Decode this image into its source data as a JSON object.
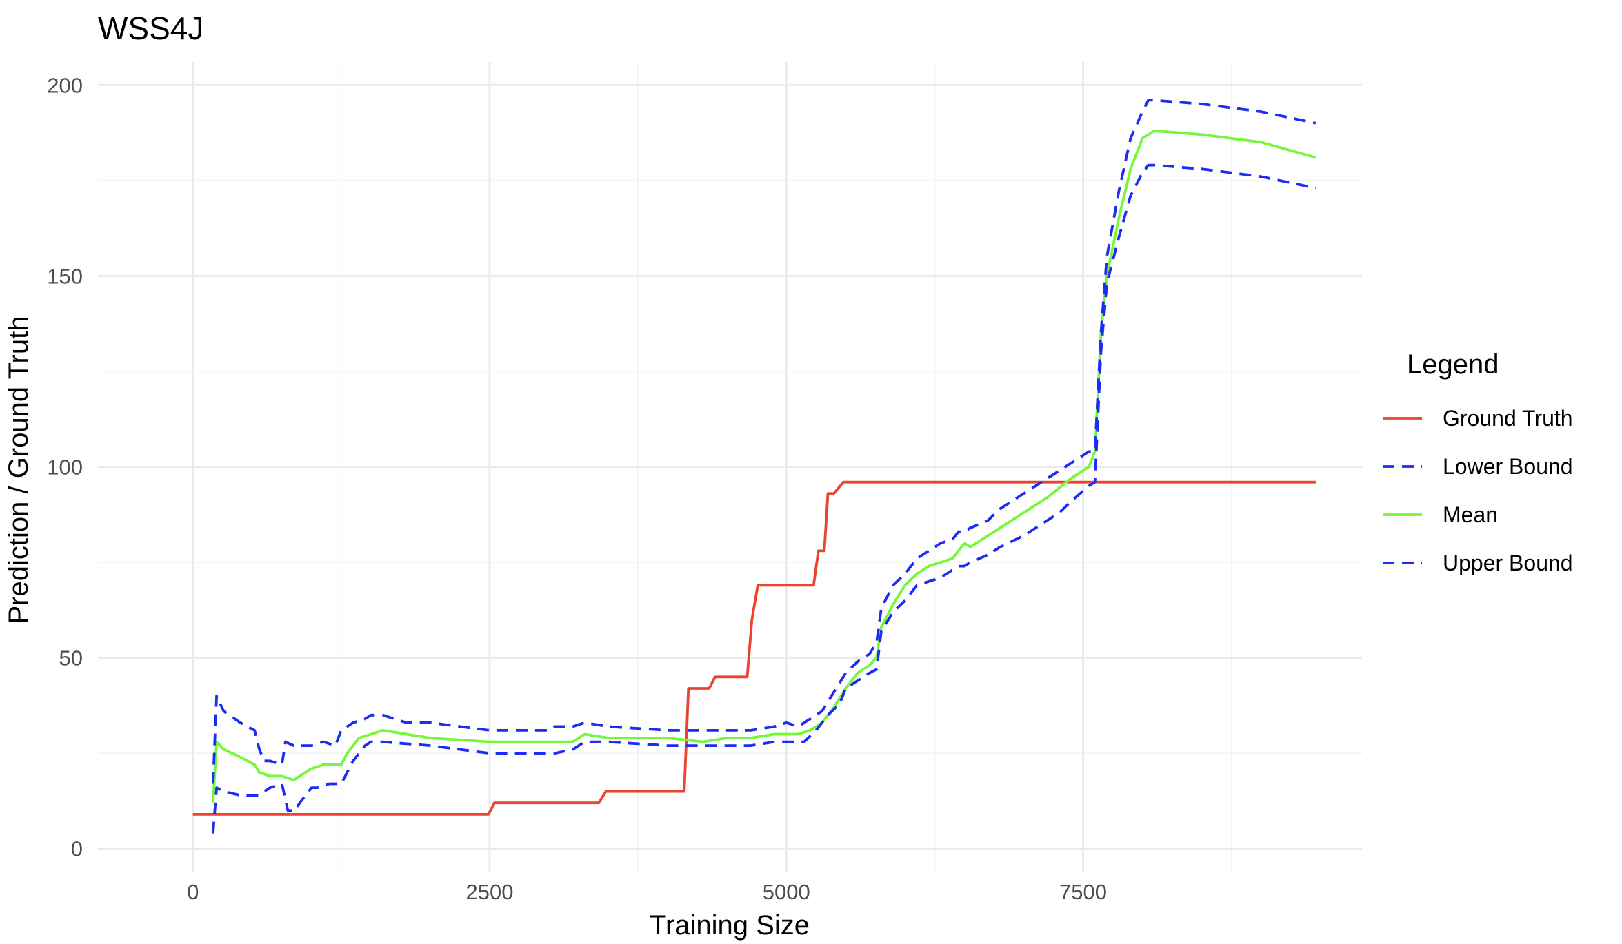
{
  "chart_data": {
    "type": "line",
    "title": "WSS4J",
    "xlabel": "Training Size",
    "ylabel": "Prediction / Ground Truth",
    "xlim": [
      -800,
      9850
    ],
    "ylim": [
      -6,
      206
    ],
    "xticks": [
      0,
      2500,
      5000,
      7500
    ],
    "yticks": [
      0,
      50,
      100,
      150,
      200
    ],
    "grid": true,
    "legend": {
      "title": "Legend",
      "position": "right"
    },
    "series": [
      {
        "name": "Ground Truth",
        "color": "#e8442e",
        "dash": "solid",
        "x": [
          0,
          2490,
          2540,
          3420,
          3480,
          4140,
          4175,
          4350,
          4400,
          4670,
          4710,
          4760,
          5230,
          5270,
          5320,
          5350,
          5400,
          5480,
          9460
        ],
        "y": [
          9,
          9,
          12,
          12,
          15,
          15,
          42,
          42,
          45,
          45,
          60,
          69,
          69,
          78,
          78,
          93,
          93,
          96,
          96
        ]
      },
      {
        "name": "Lower Bound",
        "color": "#1c2cf3",
        "dash": "dashed",
        "x": [
          170,
          200,
          260,
          400,
          550,
          650,
          750,
          800,
          860,
          900,
          1000,
          1050,
          1150,
          1250,
          1350,
          1450,
          1500,
          1600,
          2000,
          2500,
          3000,
          3050,
          3200,
          3300,
          3500,
          4000,
          4300,
          4500,
          4700,
          4900,
          5000,
          5100,
          5150,
          5250,
          5350,
          5450,
          5500,
          5600,
          5700,
          5760,
          5800,
          5900,
          6000,
          6100,
          6200,
          6300,
          6400,
          6450,
          6500,
          6550,
          6700,
          6800,
          7000,
          7200,
          7300,
          7400,
          7550,
          7600,
          7650,
          7700,
          7800,
          7900,
          8000,
          8050,
          8100,
          8500,
          9000,
          9460
        ],
        "y": [
          4,
          16,
          15,
          14,
          14,
          16,
          17,
          10,
          10,
          12,
          16,
          16,
          17,
          17,
          23,
          27,
          28,
          28,
          27,
          25,
          25,
          25,
          26,
          28,
          28,
          27,
          27,
          27,
          27,
          28,
          28,
          28,
          28,
          31,
          35,
          38,
          42,
          44,
          46,
          47,
          57,
          62,
          65,
          69,
          70,
          71,
          73,
          74,
          74,
          75,
          77,
          79,
          82,
          86,
          88,
          91,
          95,
          96,
          130,
          148,
          160,
          171,
          177,
          179,
          179,
          178,
          176,
          173
        ]
      },
      {
        "name": "Mean",
        "color": "#75f73a",
        "dash": "solid",
        "x": [
          170,
          200,
          260,
          400,
          520,
          560,
          650,
          750,
          850,
          900,
          1000,
          1100,
          1250,
          1300,
          1400,
          1500,
          1600,
          1800,
          2000,
          2500,
          2900,
          3000,
          3050,
          3200,
          3300,
          3500,
          4000,
          4300,
          4500,
          4700,
          4900,
          5000,
          5100,
          5200,
          5300,
          5400,
          5500,
          5600,
          5700,
          5760,
          5800,
          5900,
          6000,
          6100,
          6200,
          6300,
          6400,
          6450,
          6500,
          6550,
          6600,
          6700,
          6800,
          7000,
          7200,
          7400,
          7550,
          7600,
          7650,
          7700,
          7800,
          7900,
          8000,
          8050,
          8100,
          8500,
          9000,
          9460
        ],
        "y": [
          12,
          28,
          26,
          24,
          22,
          20,
          19,
          19,
          18,
          19,
          21,
          22,
          22,
          25,
          29,
          30,
          31,
          30,
          29,
          28,
          28,
          28,
          28,
          28,
          30,
          29,
          29,
          28,
          29,
          29,
          30,
          30,
          30,
          31,
          33,
          37,
          42,
          46,
          48,
          50,
          58,
          64,
          69,
          72,
          74,
          75,
          76,
          78,
          80,
          79,
          80,
          82,
          84,
          88,
          92,
          97,
          100,
          104,
          135,
          150,
          165,
          178,
          186,
          187,
          188,
          187,
          185,
          181
        ]
      },
      {
        "name": "Upper Bound",
        "color": "#1c2cf3",
        "dash": "dashed",
        "x": [
          170,
          200,
          260,
          400,
          520,
          560,
          600,
          650,
          750,
          780,
          850,
          900,
          1000,
          1100,
          1200,
          1250,
          1350,
          1450,
          1500,
          1600,
          1800,
          2000,
          2500,
          3000,
          3050,
          3200,
          3300,
          3500,
          4000,
          4300,
          4500,
          4700,
          4900,
          5000,
          5100,
          5200,
          5300,
          5400,
          5500,
          5600,
          5700,
          5760,
          5800,
          5900,
          6000,
          6100,
          6200,
          6300,
          6400,
          6450,
          6500,
          6550,
          6700,
          6800,
          7000,
          7200,
          7300,
          7400,
          7550,
          7600,
          7650,
          7700,
          7800,
          7900,
          8000,
          8050,
          8100,
          8500,
          9000,
          9460
        ],
        "y": [
          17,
          40,
          36,
          33,
          31,
          26,
          23,
          23,
          22,
          28,
          27,
          27,
          27,
          28,
          27,
          31,
          33,
          34,
          35,
          35,
          33,
          33,
          31,
          31,
          32,
          32,
          33,
          32,
          31,
          31,
          31,
          31,
          32,
          33,
          32,
          34,
          36,
          41,
          46,
          49,
          51,
          54,
          63,
          69,
          72,
          76,
          78,
          80,
          81,
          83,
          83,
          84,
          86,
          89,
          93,
          97,
          99,
          101,
          104,
          104,
          135,
          155,
          172,
          186,
          193,
          196,
          196,
          195,
          193,
          190
        ]
      }
    ]
  }
}
